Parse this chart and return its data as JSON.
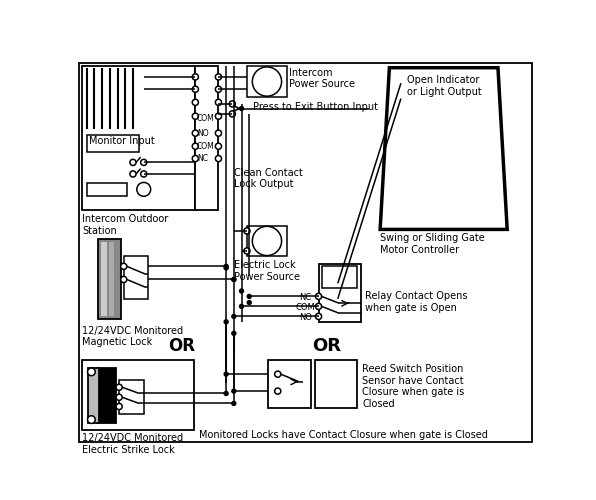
{
  "background_color": "#ffffff",
  "labels": {
    "monitor_input": "Monitor Input",
    "intercom_station": "Intercom Outdoor\nStation",
    "intercom_power": "Intercom\nPower Source",
    "press_exit": "Press to Exit Button Input",
    "clean_contact": "Clean Contact\nLock Output",
    "electric_lock_power": "Electric Lock\nPower Source",
    "magnetic_lock": "12/24VDC Monitored\nMagnetic Lock",
    "or1": "OR",
    "electric_strike": "12/24VDC Monitored\nElectric Strike Lock",
    "gate_motor": "Swing or Sliding Gate\nMotor Controller",
    "open_indicator": "Open Indicator\nor Light Output",
    "relay_contact": "Relay Contact Opens\nwhen gate is Open",
    "nc": "NC",
    "com": "COM",
    "no": "NO",
    "or2": "OR",
    "reed_switch": "Reed Switch Position\nSensor have Contact\nClosure when gate is\nClosed",
    "footer": "Monitored Locks have Contact Closure when gate is Closed"
  }
}
